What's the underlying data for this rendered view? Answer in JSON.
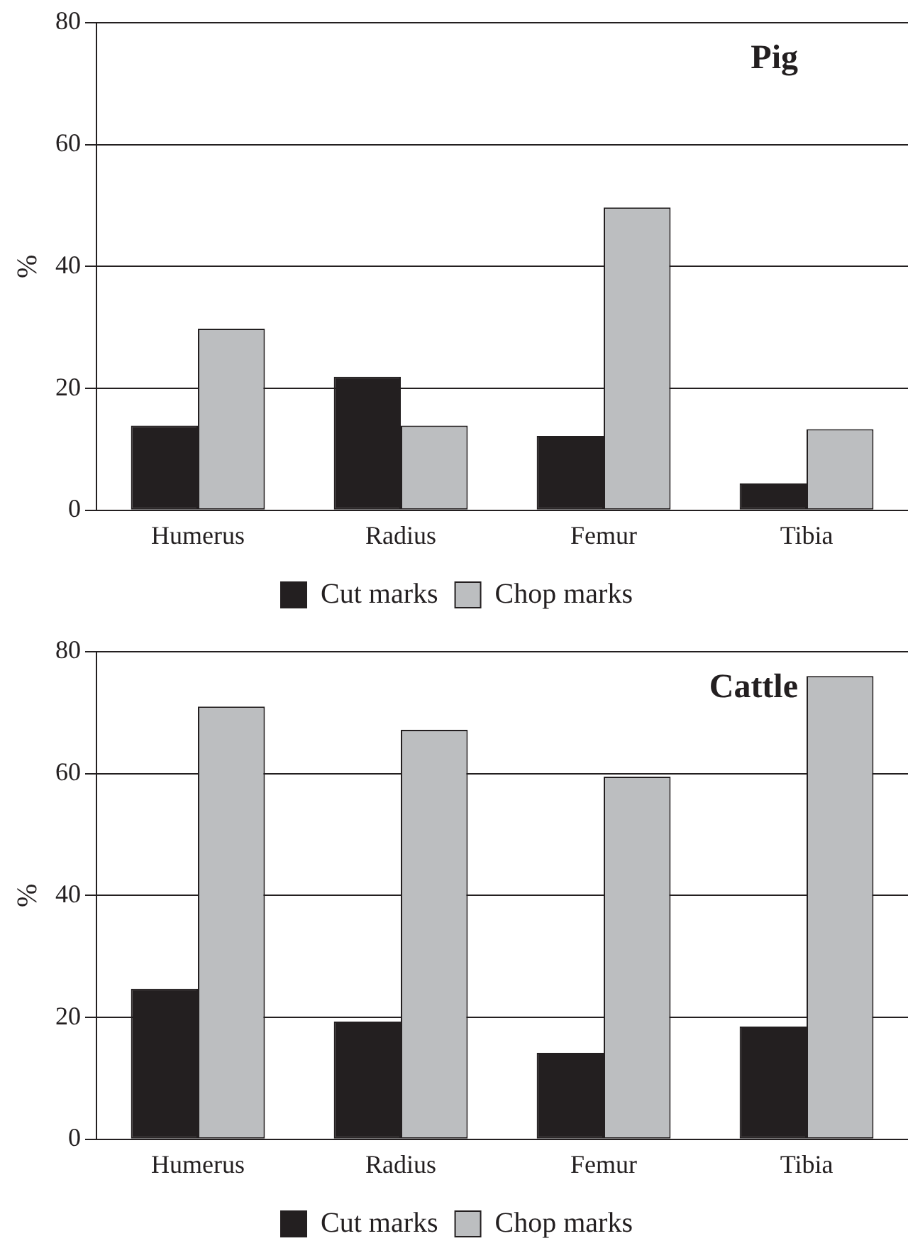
{
  "chart_data": [
    {
      "type": "bar",
      "title": "Pig",
      "ylabel": "%",
      "categories": [
        "Humerus",
        "Radius",
        "Femur",
        "Tibia"
      ],
      "series": [
        {
          "name": "Cut marks",
          "color": "#231f20",
          "values": [
            13.9,
            21.9,
            12.2,
            4.4
          ]
        },
        {
          "name": "Chop marks",
          "color": "#bcbec0",
          "values": [
            29.8,
            13.9,
            49.7,
            13.3
          ]
        }
      ],
      "ylim": [
        0,
        80
      ],
      "yticks": [
        0,
        20,
        40,
        60,
        80
      ],
      "grid": "y",
      "legend": "bottom"
    },
    {
      "type": "bar",
      "title": "Cattle",
      "ylabel": "%",
      "categories": [
        "Humerus",
        "Radius",
        "Femur",
        "Tibia"
      ],
      "series": [
        {
          "name": "Cut marks",
          "color": "#231f20",
          "values": [
            24.7,
            19.3,
            14.2,
            18.5
          ]
        },
        {
          "name": "Chop marks",
          "color": "#bcbec0",
          "values": [
            71.0,
            67.2,
            59.5,
            76.0
          ]
        }
      ],
      "ylim": [
        0,
        80
      ],
      "yticks": [
        0,
        20,
        40,
        60,
        80
      ],
      "grid": "y",
      "legend": "bottom"
    }
  ]
}
